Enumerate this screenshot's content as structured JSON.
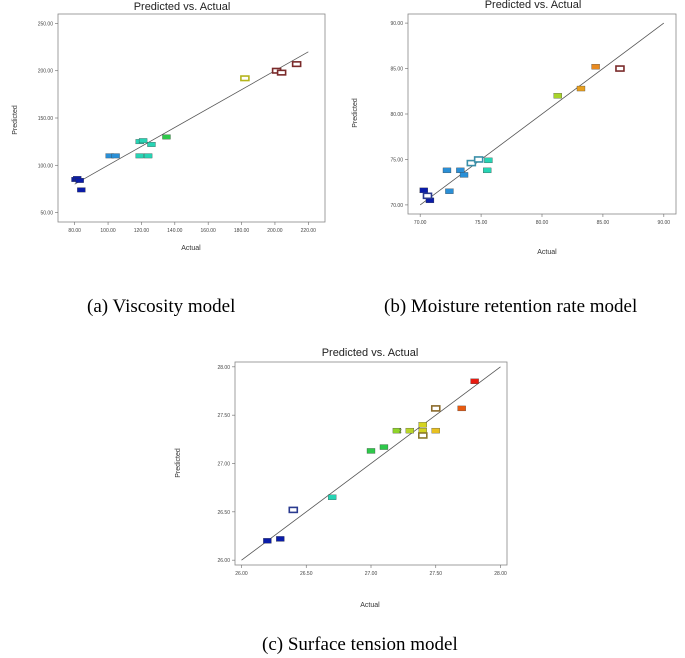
{
  "captions": {
    "a": "(a) Viscosity model",
    "b": "(b) Moisture retention rate model",
    "c": "(c) Surface tension model"
  },
  "chart_data": [
    {
      "id": "viscosity",
      "type": "scatter",
      "title": "Predicted vs. Actual",
      "xlabel": "Actual",
      "ylabel": "Predicted",
      "xlim": [
        70,
        230
      ],
      "ylim": [
        40,
        260
      ],
      "xticks": [
        "80.00",
        "100.00",
        "120.00",
        "140.00",
        "160.00",
        "180.00",
        "200.00",
        "220.00"
      ],
      "xtick_values": [
        80,
        100,
        120,
        140,
        160,
        180,
        200,
        220
      ],
      "yticks": [
        "50.00",
        "100.00",
        "150.00",
        "200.00",
        "250.00"
      ],
      "ytick_values": [
        50,
        100,
        150,
        200,
        250
      ],
      "fit_line": [
        [
          80,
          80
        ],
        [
          220,
          220
        ]
      ],
      "points": [
        {
          "x": 80.5,
          "y": 85,
          "color": "#0a1ca8",
          "hollow": false
        },
        {
          "x": 81.5,
          "y": 86,
          "color": "#0a1ca8",
          "hollow": false
        },
        {
          "x": 83,
          "y": 84,
          "color": "#0a1ca8",
          "hollow": false
        },
        {
          "x": 84,
          "y": 74,
          "color": "#0a1ca8",
          "hollow": false
        },
        {
          "x": 101,
          "y": 110,
          "color": "#2a8fd6",
          "hollow": false
        },
        {
          "x": 104.5,
          "y": 110,
          "color": "#2a8fd6",
          "hollow": false
        },
        {
          "x": 119,
          "y": 125,
          "color": "#27d4b4",
          "hollow": false
        },
        {
          "x": 121,
          "y": 126,
          "color": "#27d4b4",
          "hollow": false
        },
        {
          "x": 119,
          "y": 110,
          "color": "#27d4b4",
          "hollow": false
        },
        {
          "x": 124,
          "y": 110,
          "color": "#27d4b4",
          "hollow": false
        },
        {
          "x": 126,
          "y": 122,
          "color": "#27d4b4",
          "hollow": false
        },
        {
          "x": 135,
          "y": 130,
          "color": "#2ec84a",
          "hollow": false
        },
        {
          "x": 182,
          "y": 192,
          "color": "#b5b51c",
          "hollow": true
        },
        {
          "x": 201,
          "y": 200,
          "color": "#7a2a2a",
          "hollow": true
        },
        {
          "x": 204,
          "y": 198,
          "color": "#7a2a2a",
          "hollow": true
        },
        {
          "x": 213,
          "y": 207,
          "color": "#7a2a2a",
          "hollow": true
        }
      ]
    },
    {
      "id": "moisture",
      "type": "scatter",
      "title": "Predicted vs. Actual",
      "xlabel": "Actual",
      "ylabel": "Predicted",
      "xlim": [
        69,
        91
      ],
      "ylim": [
        69,
        91
      ],
      "xticks": [
        "70.00",
        "75.00",
        "80.00",
        "85.00",
        "90.00"
      ],
      "xtick_values": [
        70,
        75,
        80,
        85,
        90
      ],
      "yticks": [
        "70.00",
        "75.00",
        "80.00",
        "85.00",
        "90.00"
      ],
      "ytick_values": [
        70,
        75,
        80,
        85,
        90
      ],
      "fit_line": [
        [
          70,
          70
        ],
        [
          90,
          90
        ]
      ],
      "points": [
        {
          "x": 70.3,
          "y": 71.6,
          "color": "#0a1ca8",
          "hollow": false
        },
        {
          "x": 70.8,
          "y": 70.5,
          "color": "#0a1ca8",
          "hollow": false
        },
        {
          "x": 70.6,
          "y": 71.0,
          "color": "#2a3a8f",
          "hollow": true
        },
        {
          "x": 72.2,
          "y": 73.8,
          "color": "#2a8fd6",
          "hollow": false
        },
        {
          "x": 72.4,
          "y": 71.5,
          "color": "#2a8fd6",
          "hollow": false
        },
        {
          "x": 73.3,
          "y": 73.8,
          "color": "#2a8fd6",
          "hollow": false
        },
        {
          "x": 73.6,
          "y": 73.3,
          "color": "#2a8fd6",
          "hollow": false
        },
        {
          "x": 74.2,
          "y": 74.6,
          "color": "#3a8fa8",
          "hollow": true
        },
        {
          "x": 74.8,
          "y": 75.0,
          "color": "#3a8fa8",
          "hollow": true
        },
        {
          "x": 75.6,
          "y": 74.9,
          "color": "#27d4b4",
          "hollow": false
        },
        {
          "x": 75.5,
          "y": 73.8,
          "color": "#27d4b4",
          "hollow": false
        },
        {
          "x": 81.3,
          "y": 82.0,
          "color": "#a8d42a",
          "hollow": false
        },
        {
          "x": 83.2,
          "y": 82.8,
          "color": "#e8a020",
          "hollow": false
        },
        {
          "x": 84.4,
          "y": 85.2,
          "color": "#e88a20",
          "hollow": false
        },
        {
          "x": 86.4,
          "y": 85.0,
          "color": "#7a2a2a",
          "hollow": true
        }
      ]
    },
    {
      "id": "surface_tension",
      "type": "scatter",
      "title": "Predicted vs. Actual",
      "xlabel": "Actual",
      "ylabel": "Predicted",
      "xlim": [
        25.95,
        28.05
      ],
      "ylim": [
        25.95,
        28.05
      ],
      "xticks": [
        "26.00",
        "26.50",
        "27.00",
        "27.50",
        "28.00"
      ],
      "xtick_values": [
        26.0,
        26.5,
        27.0,
        27.5,
        28.0
      ],
      "yticks": [
        "26.00",
        "26.50",
        "27.00",
        "27.50",
        "28.00"
      ],
      "ytick_values": [
        26.0,
        26.5,
        27.0,
        27.5,
        28.0
      ],
      "fit_line": [
        [
          26.0,
          26.0
        ],
        [
          28.0,
          28.0
        ]
      ],
      "point_annotation": "2",
      "points": [
        {
          "x": 26.2,
          "y": 26.2,
          "color": "#0a1ca8",
          "hollow": false
        },
        {
          "x": 26.3,
          "y": 26.22,
          "color": "#0a1ca8",
          "hollow": false
        },
        {
          "x": 26.4,
          "y": 26.52,
          "color": "#2a3a8f",
          "hollow": true
        },
        {
          "x": 26.7,
          "y": 26.65,
          "color": "#27d4b4",
          "hollow": false
        },
        {
          "x": 27.0,
          "y": 27.13,
          "color": "#2ec84a",
          "hollow": false
        },
        {
          "x": 27.1,
          "y": 27.17,
          "color": "#2ec84a",
          "hollow": false
        },
        {
          "x": 27.2,
          "y": 27.34,
          "color": "#8fd42a",
          "hollow": false
        },
        {
          "x": 27.3,
          "y": 27.34,
          "color": "#b8d42a",
          "hollow": false
        },
        {
          "x": 27.4,
          "y": 27.4,
          "color": "#d4d420",
          "hollow": false
        },
        {
          "x": 27.4,
          "y": 27.34,
          "color": "#d4d420",
          "hollow": false
        },
        {
          "x": 27.4,
          "y": 27.29,
          "color": "#8a7a2a",
          "hollow": true
        },
        {
          "x": 27.5,
          "y": 27.34,
          "color": "#e8c020",
          "hollow": false
        },
        {
          "x": 27.5,
          "y": 27.57,
          "color": "#8a6a2a",
          "hollow": true
        },
        {
          "x": 27.7,
          "y": 27.57,
          "color": "#e85a10",
          "hollow": false
        },
        {
          "x": 27.8,
          "y": 27.85,
          "color": "#e81a10",
          "hollow": false
        }
      ]
    }
  ]
}
